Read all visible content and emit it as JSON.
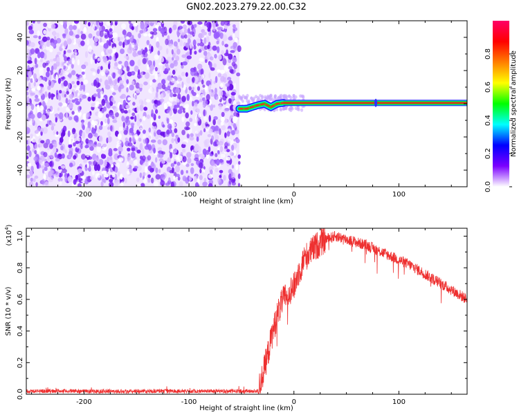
{
  "title": "GN02.2023.279.22.00.C32",
  "chart_data": [
    {
      "type": "heatmap",
      "xlabel": "Height of straight line (km)",
      "ylabel": "Frequency (Hz)",
      "xlim": [
        -255,
        165
      ],
      "ylim": [
        -50,
        50
      ],
      "xticks": [
        -200,
        -100,
        0,
        100
      ],
      "yticks": [
        -40,
        -20,
        0,
        20,
        40
      ],
      "noise_region_x": [
        -255,
        -52
      ],
      "signal_track": {
        "x_start": -52,
        "x_end": 165,
        "frequency": 0.5,
        "wiggle_points": [
          [
            -52,
            -3
          ],
          [
            -45,
            -3
          ],
          [
            -40,
            -2
          ],
          [
            -35,
            -1
          ],
          [
            -28,
            0
          ],
          [
            -22,
            -2
          ],
          [
            -16,
            0
          ],
          [
            -10,
            0.5
          ]
        ]
      },
      "colorbar": {
        "label": "Normalized spectral amplitude",
        "range": [
          0,
          1
        ],
        "ticks": [
          "0.0",
          "0.2",
          "0.4",
          "0.6",
          "0.8"
        ],
        "colormap": "rainbow",
        "colors": [
          "#ffffff",
          "#7b00ff",
          "#0000ff",
          "#00ffff",
          "#00ff00",
          "#ffff00",
          "#ff7f00",
          "#ff0000",
          "#ff0066"
        ]
      }
    },
    {
      "type": "line",
      "xlabel": "Height of straight line (km)",
      "ylabel": "SNR (10 * v/v)",
      "y_multiplier": "(x10",
      "y_multiplier_exp": "4",
      "y_multiplier_close": ")",
      "xlim": [
        -255,
        165
      ],
      "ylim": [
        0,
        1.05
      ],
      "xticks": [
        -200,
        -100,
        0,
        100
      ],
      "yticks": [
        "0.0",
        "0.2",
        "0.4",
        "0.6",
        "0.8",
        "1.0"
      ],
      "color": "#ee3030",
      "series": [
        {
          "x": [
            -255,
            -220,
            -180,
            -140,
            -100,
            -60,
            -40,
            -34,
            -30,
            -25,
            -20,
            -15,
            -10,
            -5,
            0,
            5,
            10,
            20,
            30,
            40,
            50,
            60,
            70,
            80,
            90,
            100,
            110,
            120,
            130,
            140,
            150,
            160,
            165
          ],
          "y": [
            0.02,
            0.02,
            0.02,
            0.02,
            0.02,
            0.02,
            0.02,
            0.02,
            0.12,
            0.25,
            0.4,
            0.52,
            0.6,
            0.65,
            0.68,
            0.78,
            0.86,
            0.93,
            0.98,
            1.0,
            0.98,
            0.96,
            0.94,
            0.91,
            0.88,
            0.85,
            0.82,
            0.78,
            0.74,
            0.7,
            0.66,
            0.62,
            0.6
          ]
        }
      ]
    }
  ]
}
